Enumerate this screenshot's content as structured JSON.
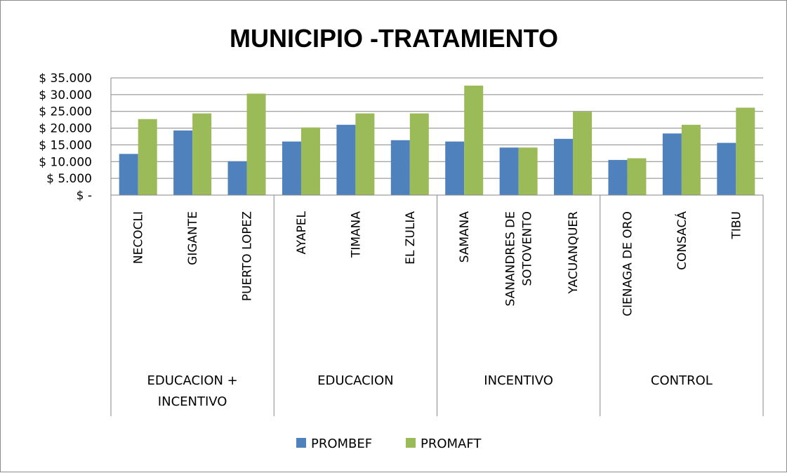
{
  "chart_data": {
    "type": "bar",
    "title": "MUNICIPIO -TRATAMIENTO",
    "xlabel": "",
    "ylabel": "",
    "ylim": [
      0,
      35000
    ],
    "y_ticks": [
      0,
      5000,
      10000,
      15000,
      20000,
      25000,
      30000,
      35000
    ],
    "y_tick_labels": [
      "$ -",
      "$ 5.000",
      "$ 10.000",
      "$ 15.000",
      "$ 20.000",
      "$ 25.000",
      "$ 30.000",
      "$ 35.000"
    ],
    "grid": true,
    "legend_position": "bottom",
    "categories": [
      "NECOCLI",
      "GIGANTE",
      "PUERTO LOPEZ",
      "AYAPEL",
      "TIMANA",
      "EL ZULIA",
      "SAMANA",
      "SANANDRES DE SOTOVENTO",
      "YACUANQUER",
      "CIENAGA DE ORO",
      "CONSACÁ",
      "TIBU"
    ],
    "category_label_lines": [
      [
        "NECOCLI"
      ],
      [
        "GIGANTE"
      ],
      [
        "PUERTO LOPEZ"
      ],
      [
        "AYAPEL"
      ],
      [
        "TIMANA"
      ],
      [
        "EL ZULIA"
      ],
      [
        "SAMANA"
      ],
      [
        "SANANDRES DE",
        "SOTOVENTO"
      ],
      [
        "YACUANQUER"
      ],
      [
        "CIENAGA DE ORO"
      ],
      [
        "CONSACÁ"
      ],
      [
        "TIBU"
      ]
    ],
    "groups": [
      {
        "label_lines": [
          "EDUCACION +",
          "INCENTIVO"
        ],
        "count": 3
      },
      {
        "label_lines": [
          "EDUCACION"
        ],
        "count": 3
      },
      {
        "label_lines": [
          "INCENTIVO"
        ],
        "count": 3
      },
      {
        "label_lines": [
          "CONTROL"
        ],
        "count": 3
      }
    ],
    "series": [
      {
        "name": "PROMBEF",
        "color": "#4f81bd",
        "values": [
          12300,
          19300,
          10100,
          16000,
          21000,
          16400,
          16000,
          14200,
          16800,
          10500,
          18400,
          15600
        ]
      },
      {
        "name": "PROMAFT",
        "color": "#9bbb59",
        "values": [
          22700,
          24400,
          30300,
          20200,
          24400,
          24400,
          32700,
          14200,
          24900,
          11000,
          21000,
          26100
        ]
      }
    ]
  }
}
